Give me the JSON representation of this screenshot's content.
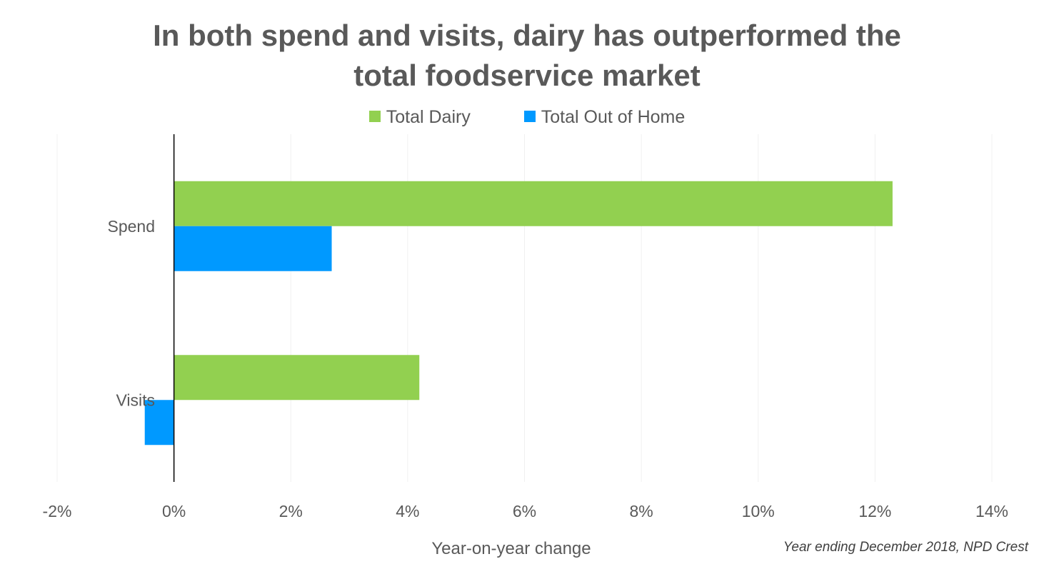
{
  "chart_data": {
    "type": "bar",
    "orientation": "horizontal",
    "title": "In both spend and visits, dairy has outperformed the total foodservice market",
    "title_lines": [
      "In both spend and visits, dairy has outperformed the",
      "total foodservice market"
    ],
    "categories": [
      "Spend",
      "Visits"
    ],
    "series": [
      {
        "name": "Total Dairy",
        "color": "#92D050",
        "values": [
          12.3,
          4.2
        ]
      },
      {
        "name": "Total Out of Home",
        "color": "#0099FF",
        "values": [
          2.7,
          -0.5
        ]
      }
    ],
    "xlabel": "Year-on-year change",
    "ylabel": "",
    "xlim": [
      -2,
      14
    ],
    "xticks": [
      -2,
      0,
      2,
      4,
      6,
      8,
      10,
      12,
      14
    ],
    "xtick_labels": [
      "-2%",
      "0%",
      "2%",
      "4%",
      "6%",
      "8%",
      "10%",
      "12%",
      "14%"
    ],
    "grid": true,
    "legend_position": "top",
    "source": "Year ending December 2018, NPD Crest"
  }
}
